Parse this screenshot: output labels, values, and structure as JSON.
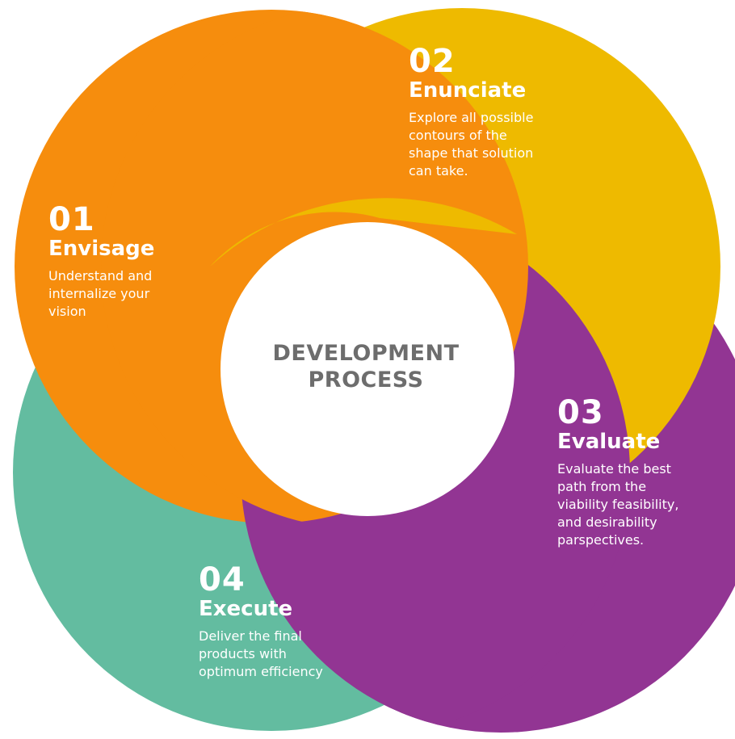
{
  "center": {
    "title": "DEVELOPMENT\nPROCESS"
  },
  "colors": {
    "envisage": "#F68D0D",
    "enunciate": "#EEBA00",
    "evaluate": "#923593",
    "execute": "#63BCA0",
    "center_text": "#6D6D6D",
    "step_text": "#FFFFFF"
  },
  "steps": [
    {
      "number": "01",
      "title": "Envisage",
      "description": "Understand and\ninternalize your\nvision"
    },
    {
      "number": "02",
      "title": "Enunciate",
      "description": "Explore all possible\ncontours of the\nshape that solution\ncan take."
    },
    {
      "number": "03",
      "title": "Evaluate",
      "description": "Evaluate the best\npath from the\nviability feasibility,\nand desirability\nparspectives."
    },
    {
      "number": "04",
      "title": "Execute",
      "description": "Deliver the final\nproducts with\noptimum efficiency"
    }
  ]
}
